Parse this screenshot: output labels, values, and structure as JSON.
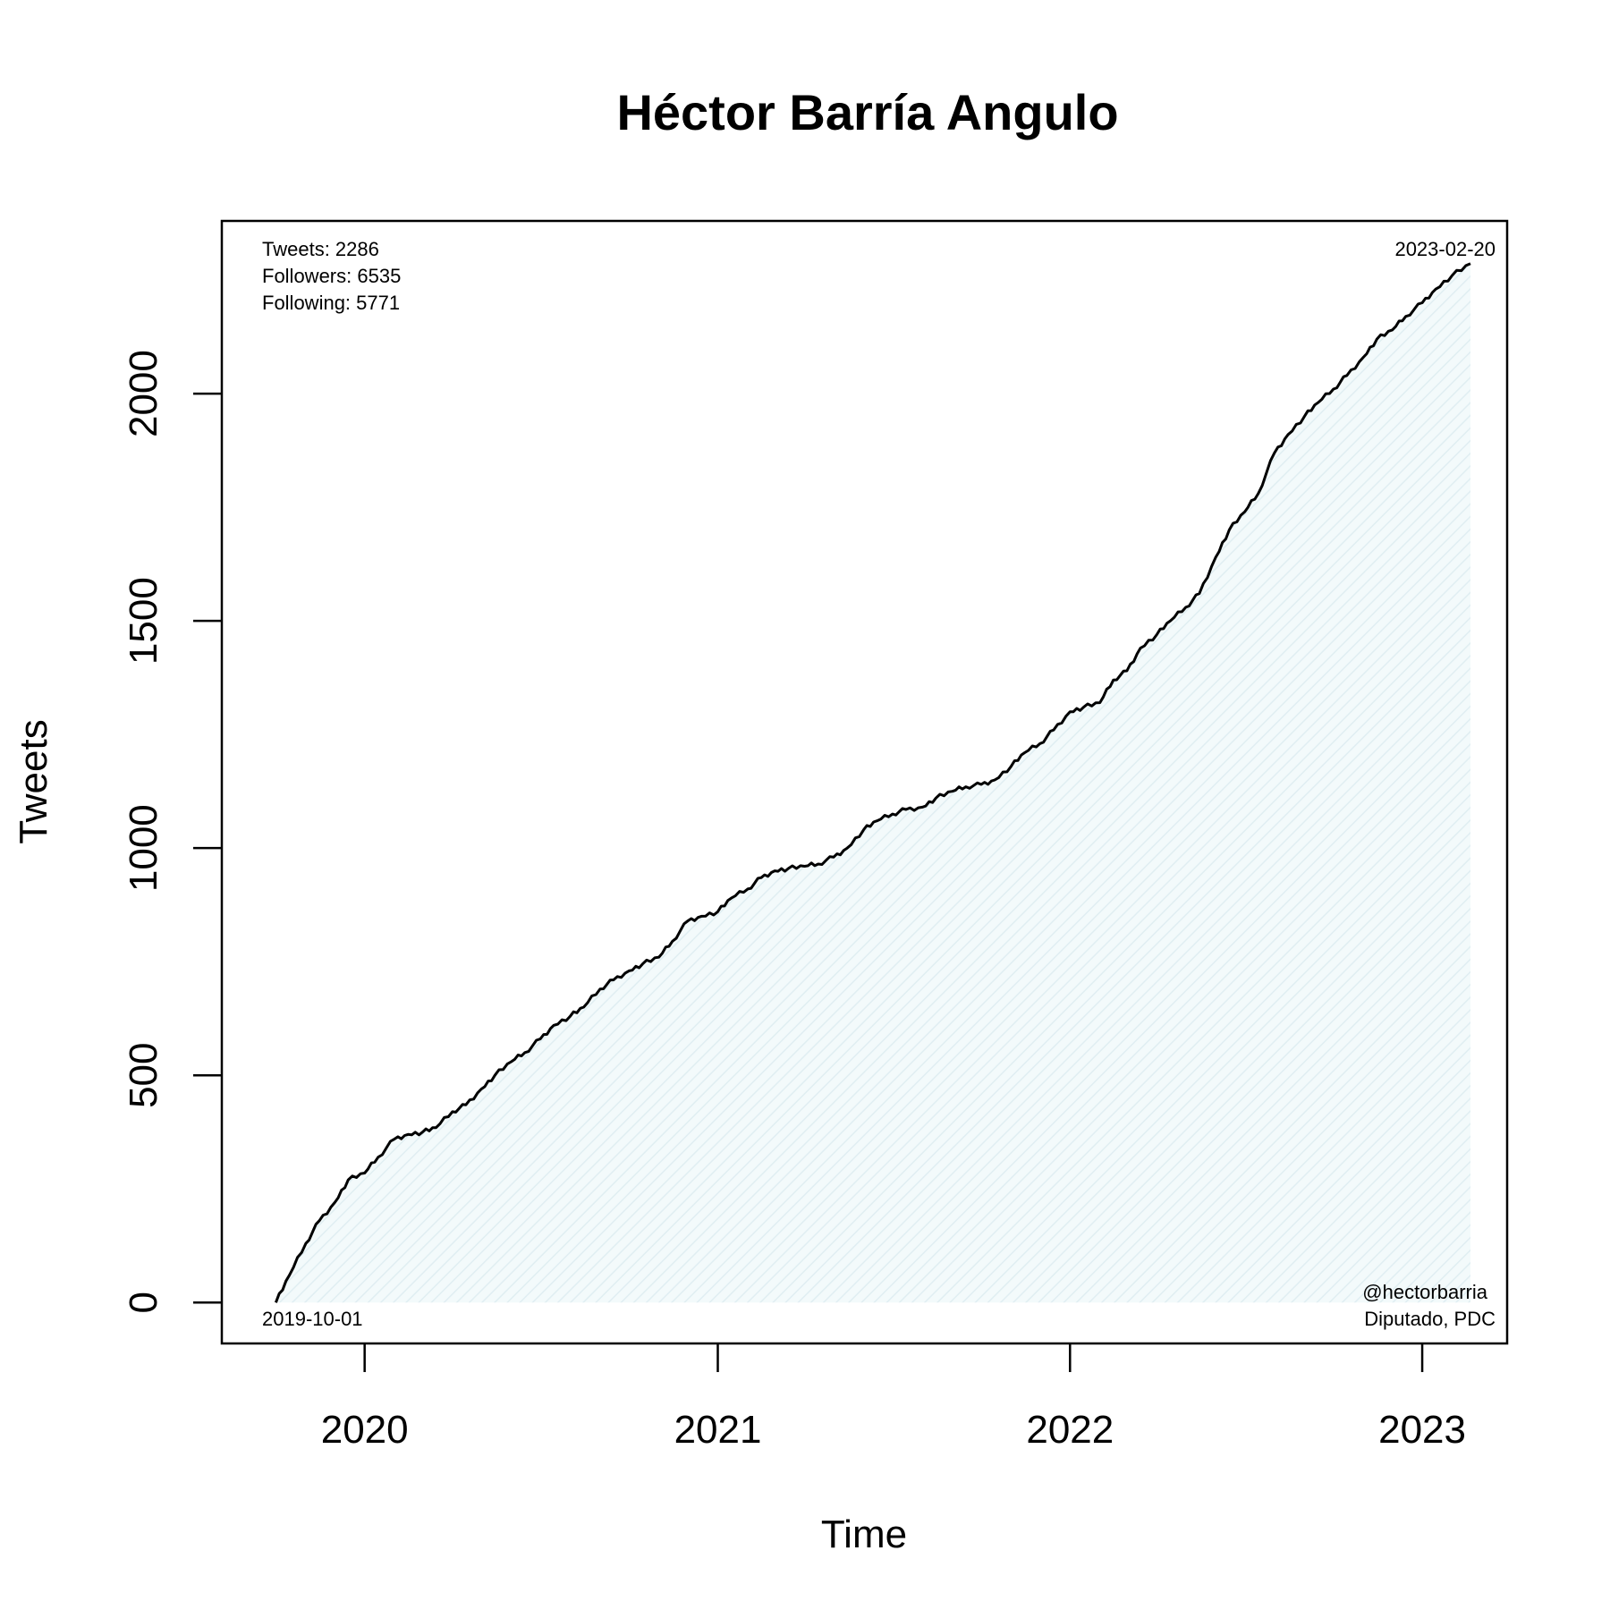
{
  "chart_data": {
    "type": "area",
    "title": "Héctor Barría Angulo",
    "xlabel": "Time",
    "ylabel": "Tweets",
    "x_ticks": [
      "2020",
      "2021",
      "2022",
      "2023"
    ],
    "y_ticks": [
      0,
      500,
      1000,
      1500,
      2000
    ],
    "xlim": [
      "2019-08-06",
      "2023-03-30"
    ],
    "ylim": [
      -90,
      2380
    ],
    "grid": false,
    "fill_color": "#e6f2f5",
    "line_color": "#000000",
    "series": [
      {
        "x": [
          "2019-10-01",
          "2019-10-15",
          "2019-11-01",
          "2019-11-15",
          "2019-12-01",
          "2019-12-15",
          "2020-01-01",
          "2020-01-15",
          "2020-02-01",
          "2020-02-15",
          "2020-03-01",
          "2020-03-15",
          "2020-04-01",
          "2020-04-15",
          "2020-05-01",
          "2020-05-15",
          "2020-06-01",
          "2020-06-15",
          "2020-07-01",
          "2020-07-15",
          "2020-08-01",
          "2020-08-15",
          "2020-09-01",
          "2020-09-15",
          "2020-10-01",
          "2020-10-15",
          "2020-11-01",
          "2020-11-15",
          "2020-12-01",
          "2020-12-15",
          "2021-01-01",
          "2021-01-15",
          "2021-02-01",
          "2021-02-15",
          "2021-03-01",
          "2021-03-15",
          "2021-04-01",
          "2021-04-15",
          "2021-05-01",
          "2021-05-15",
          "2021-06-01",
          "2021-06-15",
          "2021-07-01",
          "2021-07-15",
          "2021-08-01",
          "2021-08-15",
          "2021-09-01",
          "2021-09-15",
          "2021-10-01",
          "2021-10-15",
          "2021-11-01",
          "2021-11-15",
          "2021-12-01",
          "2021-12-15",
          "2022-01-01",
          "2022-01-15",
          "2022-02-01",
          "2022-02-15",
          "2022-03-01",
          "2022-03-15",
          "2022-04-01",
          "2022-04-15",
          "2022-05-01",
          "2022-05-15",
          "2022-06-01",
          "2022-06-15",
          "2022-07-01",
          "2022-07-15",
          "2022-08-01",
          "2022-08-15",
          "2022-09-01",
          "2022-09-15",
          "2022-10-01",
          "2022-10-15",
          "2022-11-01",
          "2022-11-15",
          "2022-12-01",
          "2022-12-15",
          "2023-01-01",
          "2023-01-15",
          "2023-02-01",
          "2023-02-20"
        ],
        "y": [
          0,
          60,
          130,
          180,
          220,
          270,
          285,
          320,
          360,
          370,
          375,
          385,
          420,
          435,
          470,
          500,
          530,
          550,
          580,
          610,
          630,
          650,
          690,
          710,
          730,
          745,
          760,
          795,
          840,
          850,
          860,
          890,
          910,
          935,
          950,
          955,
          960,
          965,
          980,
          1000,
          1040,
          1060,
          1075,
          1085,
          1090,
          1110,
          1125,
          1135,
          1140,
          1150,
          1180,
          1210,
          1230,
          1260,
          1300,
          1310,
          1320,
          1370,
          1390,
          1440,
          1470,
          1500,
          1530,
          1560,
          1640,
          1700,
          1740,
          1780,
          1870,
          1910,
          1950,
          1980,
          2010,
          2040,
          2080,
          2120,
          2140,
          2170,
          2200,
          2230,
          2260,
          2286
        ]
      }
    ],
    "annotations": {
      "stats": [
        "Tweets: 2286",
        "Followers: 6535",
        "Following: 5771"
      ],
      "start_date": "2019-10-01",
      "end_date": "2023-02-20",
      "handle": "@hectorbarria",
      "role": "Diputado, PDC"
    }
  }
}
